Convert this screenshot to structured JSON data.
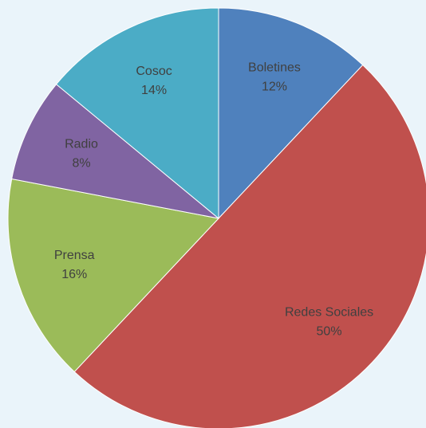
{
  "chart_data": {
    "type": "pie",
    "categories": [
      "Boletines",
      "Redes Sociales",
      "Prensa",
      "Radio",
      "Cosoc"
    ],
    "values": [
      12,
      50,
      16,
      8,
      14
    ],
    "value_labels": [
      "12%",
      "50%",
      "16%",
      "8%",
      "14%"
    ],
    "colors": [
      "#4f81bd",
      "#c0504d",
      "#9bbb59",
      "#8064a2",
      "#4bacc6"
    ]
  }
}
